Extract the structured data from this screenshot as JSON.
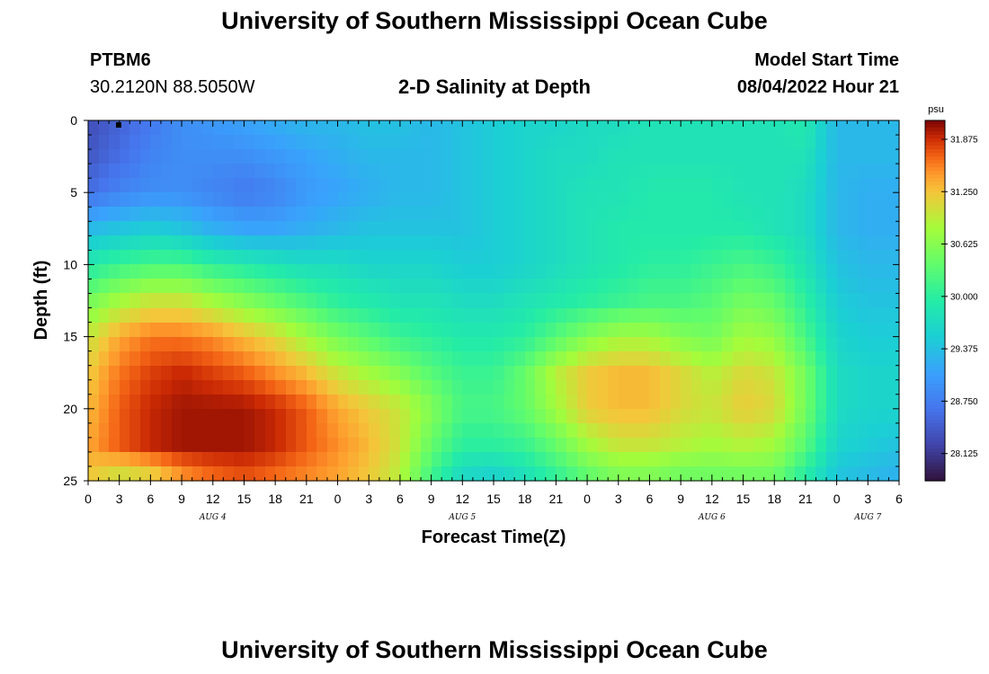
{
  "header": {
    "title": "University of Southern Mississippi Ocean Cube",
    "footer_title": "University of Southern Mississippi Ocean Cube",
    "station_id": "PTBM6",
    "station_coords": "30.2120N  88.5050W",
    "subtitle": "2-D Salinity at Depth",
    "model_start_label": "Model Start Time",
    "model_start_value": "08/04/2022 Hour 21"
  },
  "chart_data": {
    "type": "heatmap",
    "title": "2-D Salinity at Depth",
    "xlabel": "Forecast Time(Z)",
    "ylabel": "Depth (ft)",
    "x_tick_labels": [
      "0",
      "3",
      "6",
      "9",
      "12",
      "15",
      "18",
      "21",
      "0",
      "3",
      "6",
      "9",
      "12",
      "15",
      "18",
      "21",
      "0",
      "3",
      "6",
      "9",
      "12",
      "15",
      "18",
      "21",
      "0",
      "3",
      "6"
    ],
    "x_range_hours": [
      0,
      78
    ],
    "day_labels": [
      {
        "label": "AUG 4",
        "hour": 12
      },
      {
        "label": "AUG 5",
        "hour": 36
      },
      {
        "label": "AUG 6",
        "hour": 60
      },
      {
        "label": "AUG 7",
        "hour": 75
      }
    ],
    "y_ticks": [
      0,
      5,
      10,
      15,
      20,
      25
    ],
    "y_range_ft": [
      0,
      25
    ],
    "y_inverted": true,
    "colorbar": {
      "unit": "psu",
      "ticks": [
        "31.875",
        "31.250",
        "30.625",
        "30.000",
        "29.375",
        "28.750",
        "28.125"
      ],
      "range": [
        27.8,
        32.1
      ]
    },
    "colors": {
      "low": "#30123b",
      "mid": "#46f884",
      "high": "#7a0403"
    },
    "salinity_psu_samples": {
      "hours": [
        0,
        3,
        6,
        9,
        12,
        15,
        18,
        21,
        24,
        27,
        30,
        33,
        36,
        39,
        42,
        45,
        48,
        51,
        54,
        57,
        60,
        63,
        66,
        69,
        72,
        75,
        78
      ],
      "depths_ft": [
        0,
        2.5,
        5,
        7.5,
        10,
        12.5,
        15,
        17.5,
        20,
        22.5,
        25
      ],
      "grid": [
        [
          28.3,
          28.5,
          28.7,
          28.9,
          29.0,
          29.1,
          29.2,
          29.3,
          29.3,
          29.4,
          29.4,
          29.3,
          29.4,
          29.5,
          29.6,
          29.6,
          29.7,
          29.7,
          29.8,
          29.8,
          29.8,
          29.8,
          29.8,
          29.9,
          29.3,
          29.3,
          29.3
        ],
        [
          28.4,
          28.6,
          28.8,
          28.9,
          28.9,
          28.9,
          29.0,
          29.1,
          29.2,
          29.3,
          29.3,
          29.3,
          29.4,
          29.5,
          29.6,
          29.7,
          29.7,
          29.8,
          29.8,
          29.8,
          29.8,
          29.8,
          29.8,
          29.8,
          29.3,
          29.3,
          29.3
        ],
        [
          28.6,
          28.8,
          28.9,
          28.9,
          28.8,
          28.7,
          28.8,
          29.0,
          29.1,
          29.2,
          29.3,
          29.3,
          29.4,
          29.5,
          29.6,
          29.7,
          29.8,
          29.8,
          29.9,
          29.9,
          29.9,
          29.8,
          29.8,
          29.7,
          29.3,
          29.2,
          29.2
        ],
        [
          29.3,
          29.4,
          29.5,
          29.4,
          29.2,
          29.1,
          29.1,
          29.2,
          29.3,
          29.4,
          29.4,
          29.4,
          29.4,
          29.5,
          29.6,
          29.7,
          29.8,
          29.9,
          29.9,
          29.9,
          29.9,
          29.9,
          29.8,
          29.7,
          29.3,
          29.2,
          29.2
        ],
        [
          29.9,
          30.1,
          30.2,
          30.2,
          30.0,
          29.9,
          29.8,
          29.7,
          29.7,
          29.6,
          29.6,
          29.6,
          29.5,
          29.5,
          29.6,
          29.7,
          29.8,
          29.9,
          30.0,
          30.0,
          30.1,
          30.2,
          30.1,
          29.8,
          29.4,
          29.3,
          29.3
        ],
        [
          30.5,
          30.8,
          31.0,
          31.0,
          30.8,
          30.6,
          30.4,
          30.2,
          30.0,
          29.9,
          29.8,
          29.8,
          29.7,
          29.7,
          29.8,
          29.9,
          30.0,
          30.1,
          30.2,
          30.2,
          30.3,
          30.5,
          30.4,
          30.0,
          29.5,
          29.4,
          29.4
        ],
        [
          31.0,
          31.4,
          31.6,
          31.6,
          31.5,
          31.3,
          31.1,
          30.8,
          30.5,
          30.3,
          30.1,
          30.0,
          29.9,
          29.9,
          30.0,
          30.3,
          30.6,
          30.8,
          30.8,
          30.6,
          30.5,
          30.8,
          30.7,
          30.2,
          29.6,
          29.5,
          29.5
        ],
        [
          31.2,
          31.6,
          31.8,
          31.9,
          31.8,
          31.7,
          31.5,
          31.3,
          31.0,
          30.8,
          30.6,
          30.3,
          30.1,
          30.1,
          30.4,
          30.9,
          31.2,
          31.3,
          31.3,
          31.1,
          30.9,
          31.1,
          31.0,
          30.5,
          29.7,
          29.6,
          29.6
        ],
        [
          31.3,
          31.7,
          31.9,
          32.0,
          32.0,
          32.0,
          31.9,
          31.7,
          31.4,
          31.2,
          31.0,
          30.6,
          30.2,
          30.2,
          30.4,
          30.8,
          31.2,
          31.3,
          31.3,
          31.1,
          31.0,
          31.2,
          31.1,
          30.5,
          29.7,
          29.6,
          29.6
        ],
        [
          31.4,
          31.7,
          31.9,
          32.0,
          32.0,
          32.0,
          31.9,
          31.7,
          31.5,
          31.3,
          31.0,
          30.4,
          30.0,
          30.0,
          30.1,
          30.4,
          30.8,
          31.0,
          31.0,
          30.9,
          30.8,
          30.9,
          30.8,
          30.3,
          29.6,
          29.5,
          29.4
        ],
        [
          31.2,
          30.9,
          31.0,
          31.4,
          31.6,
          31.7,
          31.6,
          31.5,
          31.4,
          31.2,
          30.9,
          30.1,
          29.6,
          29.5,
          29.7,
          30.0,
          30.3,
          30.5,
          30.5,
          30.4,
          30.4,
          30.4,
          30.4,
          29.9,
          29.4,
          29.3,
          29.2
        ]
      ]
    }
  }
}
